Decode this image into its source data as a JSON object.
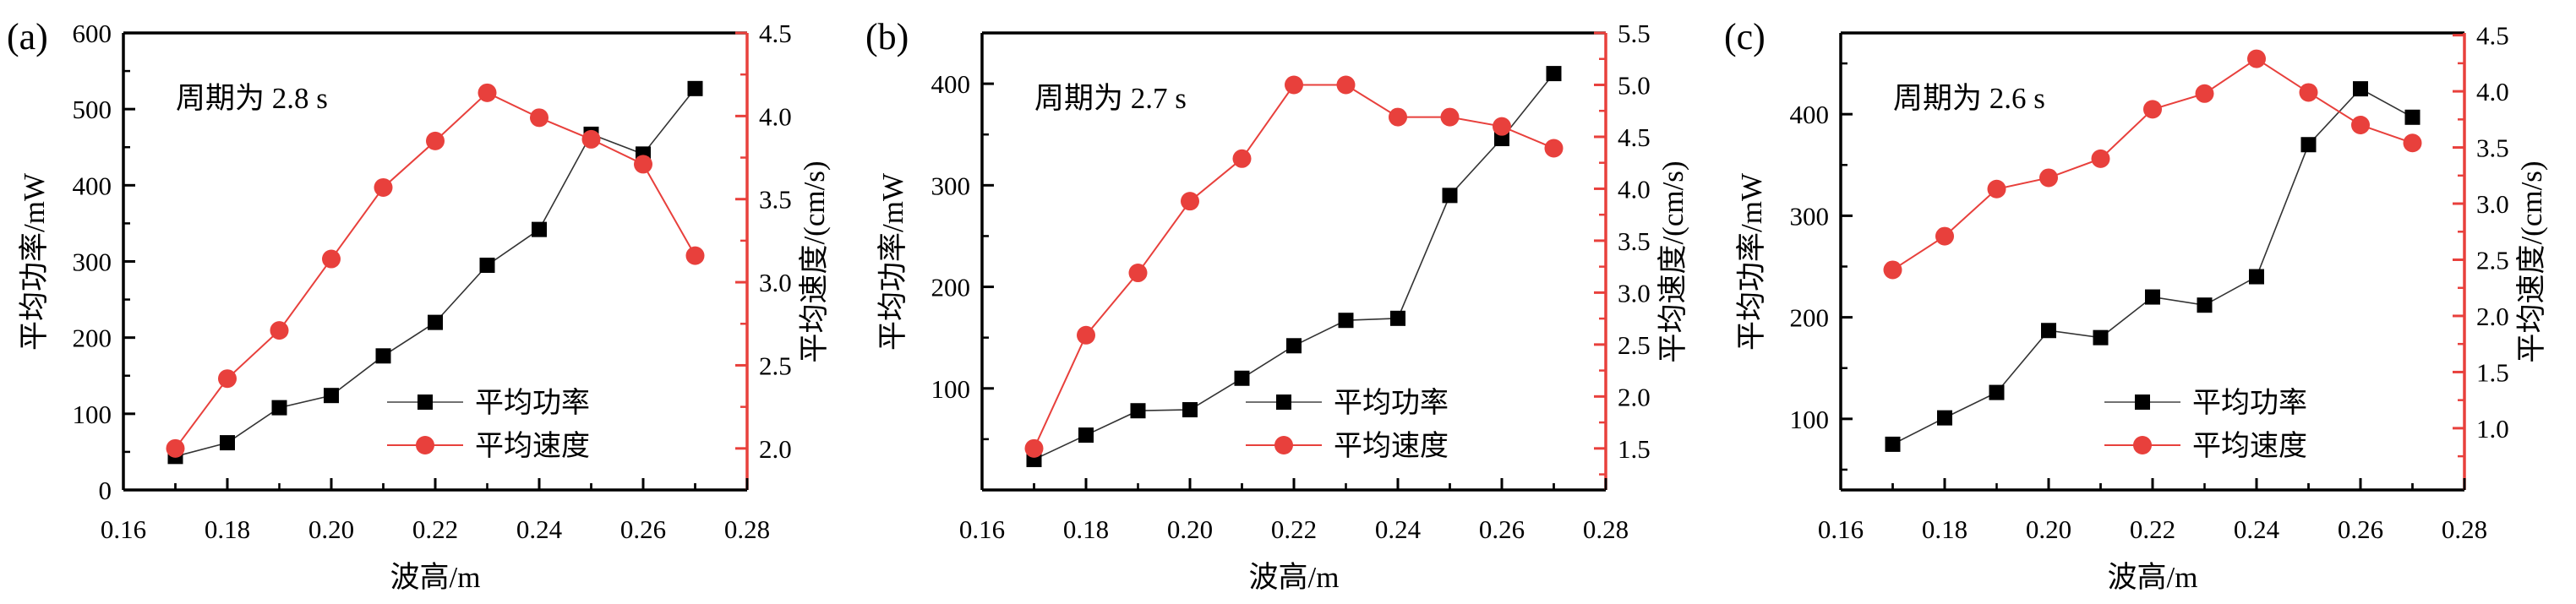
{
  "colors": {
    "power_black": "#000000",
    "speed_red": "#e8403c",
    "background": "#ffffff"
  },
  "chart_data": [
    {
      "type": "line",
      "panel_label": "(a)",
      "title_annotation": "周期为 2.8 s",
      "xlabel": "波高/m",
      "ylabel_left": "平均功率/mW",
      "ylabel_right": "平均速度/(cm/s)",
      "legend_position": "lower right",
      "grid": false,
      "x": [
        0.17,
        0.18,
        0.19,
        0.2,
        0.21,
        0.22,
        0.23,
        0.24,
        0.25,
        0.26,
        0.27
      ],
      "series": [
        {
          "name": "平均功率",
          "axis": "left",
          "marker": "square",
          "color": "#000000",
          "values": [
            44,
            62,
            108,
            124,
            176,
            220,
            295,
            342,
            467,
            441,
            527
          ]
        },
        {
          "name": "平均速度",
          "axis": "right",
          "marker": "circle",
          "color": "#e8403c",
          "values": [
            2.0,
            2.42,
            2.71,
            3.14,
            3.57,
            3.85,
            4.14,
            3.99,
            3.86,
            3.71,
            3.16
          ]
        }
      ],
      "xlim": [
        0.16,
        0.28
      ],
      "xticks": [
        0.16,
        0.18,
        0.2,
        0.22,
        0.24,
        0.26,
        0.28
      ],
      "ylim_left": [
        0,
        600
      ],
      "yticks_left": [
        0,
        100,
        200,
        300,
        400,
        500,
        600
      ],
      "ylim_right": [
        1.75,
        4.5
      ],
      "yticks_right": [
        2.0,
        2.5,
        3.0,
        3.5,
        4.0,
        4.5
      ]
    },
    {
      "type": "line",
      "panel_label": "(b)",
      "title_annotation": "周期为 2.7 s",
      "xlabel": "波高/m",
      "ylabel_left": "平均功率/mW",
      "ylabel_right": "平均速度/(cm/s)",
      "legend_position": "lower right",
      "grid": false,
      "x": [
        0.17,
        0.18,
        0.19,
        0.2,
        0.21,
        0.22,
        0.23,
        0.24,
        0.25,
        0.26,
        0.27
      ],
      "series": [
        {
          "name": "平均功率",
          "axis": "left",
          "marker": "square",
          "color": "#000000",
          "values": [
            30,
            54,
            78,
            79,
            110,
            142,
            167,
            169,
            290,
            346,
            410
          ]
        },
        {
          "name": "平均速度",
          "axis": "right",
          "marker": "circle",
          "color": "#e8403c",
          "values": [
            1.5,
            2.59,
            3.19,
            3.88,
            4.29,
            5.0,
            5.0,
            4.69,
            4.69,
            4.6,
            4.39
          ]
        }
      ],
      "xlim": [
        0.16,
        0.28
      ],
      "xticks": [
        0.16,
        0.18,
        0.2,
        0.22,
        0.24,
        0.26,
        0.28
      ],
      "ylim_left": [
        0,
        450
      ],
      "yticks_left": [
        100,
        200,
        300,
        400
      ],
      "ylim_right": [
        1.1,
        5.5
      ],
      "yticks_right": [
        1.5,
        2.0,
        2.5,
        3.0,
        3.5,
        4.0,
        4.5,
        5.0,
        5.5
      ]
    },
    {
      "type": "line",
      "panel_label": "(c)",
      "title_annotation": "周期为 2.6 s",
      "xlabel": "波高/m",
      "ylabel_left": "平均功率/mW",
      "ylabel_right": "平均速度/(cm/s)",
      "legend_position": "lower right",
      "grid": false,
      "x": [
        0.17,
        0.18,
        0.19,
        0.2,
        0.21,
        0.22,
        0.23,
        0.24,
        0.25,
        0.26,
        0.27
      ],
      "series": [
        {
          "name": "平均功率",
          "axis": "left",
          "marker": "square",
          "color": "#000000",
          "values": [
            75,
            101,
            126,
            187,
            180,
            220,
            212,
            240,
            370,
            425,
            397
          ]
        },
        {
          "name": "平均速度",
          "axis": "right",
          "marker": "circle",
          "color": "#e8403c",
          "values": [
            2.41,
            2.71,
            3.13,
            3.23,
            3.4,
            3.84,
            3.98,
            4.29,
            3.99,
            3.7,
            3.54
          ]
        }
      ],
      "xlim": [
        0.16,
        0.28
      ],
      "xticks": [
        0.16,
        0.18,
        0.2,
        0.22,
        0.24,
        0.26,
        0.28
      ],
      "ylim_left": [
        30,
        480
      ],
      "yticks_left": [
        100,
        200,
        300,
        400
      ],
      "ylim_right": [
        0.45,
        4.52
      ],
      "yticks_right": [
        1.0,
        1.5,
        2.0,
        2.5,
        3.0,
        3.5,
        4.0,
        4.5
      ]
    }
  ]
}
